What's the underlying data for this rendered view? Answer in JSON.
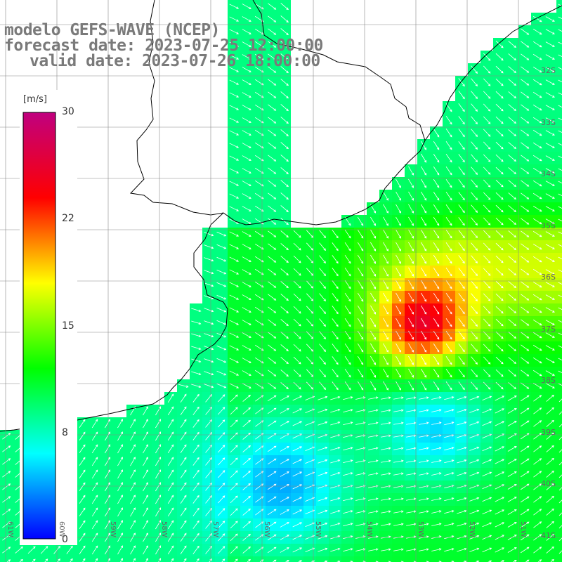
{
  "title": {
    "line1": "modelo GEFS-WAVE (NCEP)",
    "line2": "forecast date: 2023-07-25 12:00:00",
    "line3": "valid date: 2023-07-26 18:00:00"
  },
  "colorbar": {
    "unit": "[m/s]",
    "min": 0,
    "max": 30,
    "ticks": [
      "30",
      "22",
      "15",
      "8",
      "0"
    ],
    "tick_values": [
      30,
      22,
      15,
      8,
      0
    ],
    "colors": [
      "#0000ff",
      "#00ffff",
      "#00ff00",
      "#ffff00",
      "#ff0000",
      "#c0007f"
    ]
  },
  "lat_labels": [
    "32S",
    "33S",
    "34S",
    "35S",
    "36S",
    "37S",
    "38S",
    "39S",
    "40S",
    "41S"
  ],
  "lon_labels": [
    "61W",
    "60W",
    "59W",
    "58W",
    "57W",
    "56W",
    "55W",
    "54W",
    "53W",
    "52W",
    "51W"
  ],
  "map": {
    "region": "Rio de la Plata / SW Atlantic",
    "field": "wind speed with direction arrows",
    "grid_lines": true
  }
}
